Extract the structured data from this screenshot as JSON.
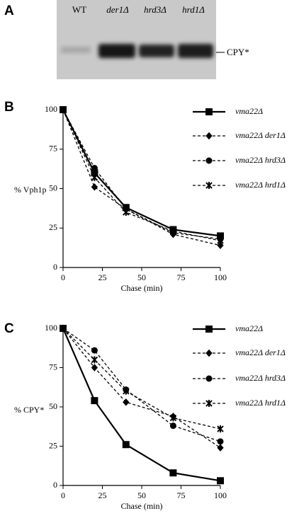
{
  "panels": {
    "a": "A",
    "b": "B",
    "c": "C"
  },
  "gel": {
    "lanes": [
      "WT",
      "der1Δ",
      "hrd3Δ",
      "hrd1Δ"
    ],
    "band_label": "CPY*"
  },
  "chart_data": [
    {
      "type": "line",
      "ylabel": "% Vph1p",
      "xlabel": "Chase (min)",
      "x": [
        0,
        20,
        40,
        70,
        100
      ],
      "xlim": [
        0,
        100
      ],
      "ylim": [
        0,
        100
      ],
      "xticks": [
        0,
        25,
        50,
        75,
        100
      ],
      "yticks": [
        0,
        25,
        50,
        75,
        100
      ],
      "series": [
        {
          "name": "vma22Δ",
          "color": "#000",
          "marker": "square",
          "dash": "solid",
          "values": [
            100,
            60,
            38,
            24,
            20
          ]
        },
        {
          "name": "vma22Δ der1Δ",
          "color": "#000",
          "marker": "diamond",
          "dash": "dashed",
          "values": [
            100,
            51,
            37,
            21,
            14
          ]
        },
        {
          "name": "vma22Δ hrd3Δ",
          "color": "#000",
          "marker": "circle",
          "dash": "dashed",
          "values": [
            100,
            63,
            37,
            22,
            18
          ]
        },
        {
          "name": "vma22Δ hrd1Δ",
          "color": "#000",
          "marker": "star",
          "dash": "dashed",
          "values": [
            100,
            57,
            35,
            23,
            17
          ]
        }
      ]
    },
    {
      "type": "line",
      "ylabel": "% CPY*",
      "xlabel": "Chase (min)",
      "x": [
        0,
        20,
        40,
        70,
        100
      ],
      "xlim": [
        0,
        100
      ],
      "ylim": [
        0,
        100
      ],
      "xticks": [
        0,
        25,
        50,
        75,
        100
      ],
      "yticks": [
        0,
        25,
        50,
        75,
        100
      ],
      "series": [
        {
          "name": "vma22Δ",
          "color": "#000",
          "marker": "square",
          "dash": "solid",
          "values": [
            100,
            54,
            26,
            8,
            3
          ]
        },
        {
          "name": "vma22Δ der1Δ",
          "color": "#000",
          "marker": "diamond",
          "dash": "dashed",
          "values": [
            100,
            75,
            53,
            44,
            24
          ]
        },
        {
          "name": "vma22Δ hrd3Δ",
          "color": "#000",
          "marker": "circle",
          "dash": "dashed",
          "values": [
            100,
            86,
            61,
            38,
            28
          ]
        },
        {
          "name": "vma22Δ hrd1Δ",
          "color": "#000",
          "marker": "star",
          "dash": "dashed",
          "values": [
            100,
            80,
            60,
            43,
            36
          ]
        }
      ]
    }
  ]
}
